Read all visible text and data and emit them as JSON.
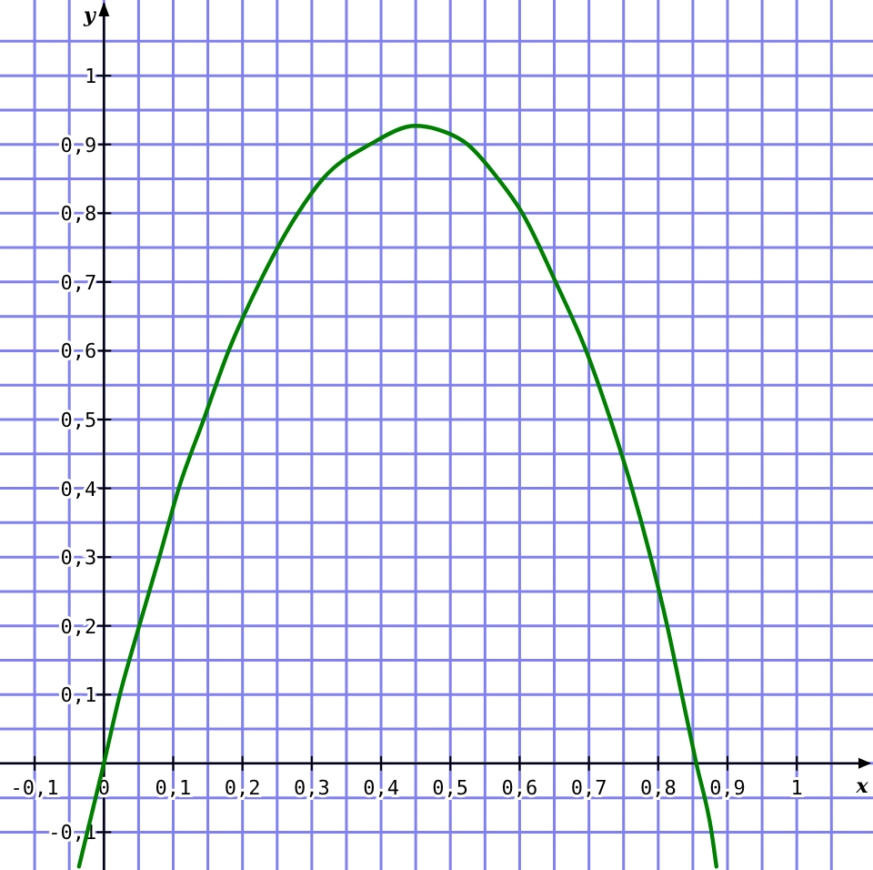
{
  "chart_data": {
    "type": "line",
    "xlabel": "x",
    "ylabel": "y",
    "xlim": [
      -0.15,
      1.11
    ],
    "ylim": [
      -0.155,
      1.11
    ],
    "xticks": [
      {
        "value": -0.1,
        "label": "-0,1"
      },
      {
        "value": -0.05,
        "label": null
      },
      {
        "value": 0,
        "label": "0"
      },
      {
        "value": 0.05,
        "label": null
      },
      {
        "value": 0.1,
        "label": "0,1"
      },
      {
        "value": 0.15,
        "label": null
      },
      {
        "value": 0.2,
        "label": "0,2"
      },
      {
        "value": 0.25,
        "label": null
      },
      {
        "value": 0.3,
        "label": "0,3"
      },
      {
        "value": 0.35,
        "label": null
      },
      {
        "value": 0.4,
        "label": "0,4"
      },
      {
        "value": 0.45,
        "label": null
      },
      {
        "value": 0.5,
        "label": "0,5"
      },
      {
        "value": 0.55,
        "label": null
      },
      {
        "value": 0.6,
        "label": "0,6"
      },
      {
        "value": 0.65,
        "label": null
      },
      {
        "value": 0.7,
        "label": "0,7"
      },
      {
        "value": 0.75,
        "label": null
      },
      {
        "value": 0.8,
        "label": "0,8"
      },
      {
        "value": 0.85,
        "label": null
      },
      {
        "value": 0.9,
        "label": "0,9"
      },
      {
        "value": 0.95,
        "label": null
      },
      {
        "value": 1,
        "label": "1"
      },
      {
        "value": 1.05,
        "label": null
      }
    ],
    "yticks": [
      {
        "value": -0.1,
        "label": "-0,1"
      },
      {
        "value": -0.05,
        "label": null
      },
      {
        "value": 0,
        "label": null
      },
      {
        "value": 0.05,
        "label": null
      },
      {
        "value": 0.1,
        "label": "0,1"
      },
      {
        "value": 0.15,
        "label": null
      },
      {
        "value": 0.2,
        "label": "0,2"
      },
      {
        "value": 0.25,
        "label": null
      },
      {
        "value": 0.3,
        "label": "0,3"
      },
      {
        "value": 0.35,
        "label": null
      },
      {
        "value": 0.4,
        "label": "0,4"
      },
      {
        "value": 0.45,
        "label": null
      },
      {
        "value": 0.5,
        "label": "0,5"
      },
      {
        "value": 0.55,
        "label": null
      },
      {
        "value": 0.6,
        "label": "0,6"
      },
      {
        "value": 0.65,
        "label": null
      },
      {
        "value": 0.7,
        "label": "0,7"
      },
      {
        "value": 0.75,
        "label": null
      },
      {
        "value": 0.8,
        "label": "0,8"
      },
      {
        "value": 0.85,
        "label": null
      },
      {
        "value": 0.9,
        "label": "0,9"
      },
      {
        "value": 0.95,
        "label": null
      },
      {
        "value": 1,
        "label": "1"
      },
      {
        "value": 1.05,
        "label": null
      }
    ],
    "grid": true,
    "marker": "none",
    "line_style": "solid",
    "series": [
      {
        "color": "#008000",
        "x": [
          -0.036,
          0,
          0.023,
          0.051,
          0.08,
          0.108,
          0.144,
          0.18,
          0.225,
          0.28,
          0.316,
          0.384,
          0.45,
          0.481,
          0.525,
          0.569,
          0.604,
          0.652,
          0.696,
          0.731,
          0.762,
          0.789,
          0.813,
          0.834,
          0.855,
          0.877,
          0.884
        ],
        "values": [
          -0.15,
          0,
          0.1,
          0.2,
          0.3,
          0.4,
          0.5,
          0.6,
          0.7,
          0.8,
          0.85,
          0.9,
          0.927,
          0.922,
          0.9,
          0.85,
          0.8,
          0.7,
          0.6,
          0.5,
          0.4,
          0.3,
          0.2,
          0.1,
          0,
          -0.1,
          -0.15
        ]
      }
    ]
  }
}
